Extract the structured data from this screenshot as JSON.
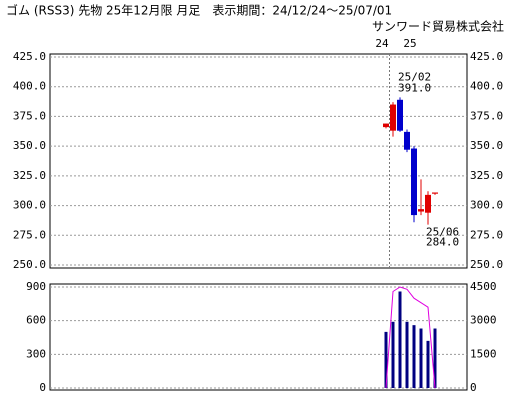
{
  "chart_data": [
    {
      "type": "candlestick",
      "title": "ゴム (RSS3) 先物 25年12月限 月足　表示期間：24/12/24～25/07/01",
      "subtitle": "サンワード貿易株式会社",
      "categories": [
        null,
        null,
        null,
        null,
        null,
        null,
        null,
        null
      ],
      "xticks": [
        {
          "value": 0,
          "label": "24"
        },
        {
          "value": 4,
          "label": "25"
        }
      ],
      "divider": 0.5,
      "open": [
        366,
        363,
        389,
        362,
        348,
        295,
        294,
        310
      ],
      "high": [
        369,
        387,
        391,
        364,
        350,
        322,
        312,
        311
      ],
      "low": [
        365,
        358,
        362,
        345,
        286,
        292,
        284,
        309
      ],
      "close": [
        369,
        385,
        363,
        347,
        292,
        297,
        309,
        311
      ],
      "up_color": "#e00000",
      "down_color": "#0000cc",
      "ylim": [
        250,
        425
      ],
      "yticks": [
        {
          "value": 250,
          "label": "250.0"
        },
        {
          "value": 275,
          "label": "275.0"
        },
        {
          "value": 300,
          "label": "300.0"
        },
        {
          "value": 325,
          "label": "325.0"
        },
        {
          "value": 350,
          "label": "350.0"
        },
        {
          "value": 375,
          "label": "375.0"
        },
        {
          "value": 400,
          "label": "400.0"
        },
        {
          "value": 425,
          "label": "425.0"
        }
      ],
      "grid": true,
      "annotations": [
        {
          "date": "25/02",
          "value": {
            "value": 391,
            "label": "391.0"
          },
          "at": "high"
        },
        {
          "date": "25/06",
          "value": {
            "value": 284,
            "label": "284.0"
          },
          "at": "low"
        }
      ]
    },
    {
      "type": "bar_line",
      "series": [
        {
          "color": "#000080",
          "values": [
            500,
            590,
            860,
            590,
            560,
            530,
            420,
            530
          ]
        },
        {
          "color": "#e000e0",
          "axis": "y2",
          "values": [
            0,
            4300,
            4500,
            4400,
            4000,
            3800,
            3600,
            0
          ]
        }
      ],
      "ylim": [
        0,
        900
      ],
      "yticks": [
        0,
        300,
        600,
        900
      ],
      "y2lim": [
        0,
        4500
      ],
      "y2ticks": [
        0,
        1500,
        3000,
        4500
      ],
      "y2color": "#e000e0",
      "grid": true
    }
  ]
}
